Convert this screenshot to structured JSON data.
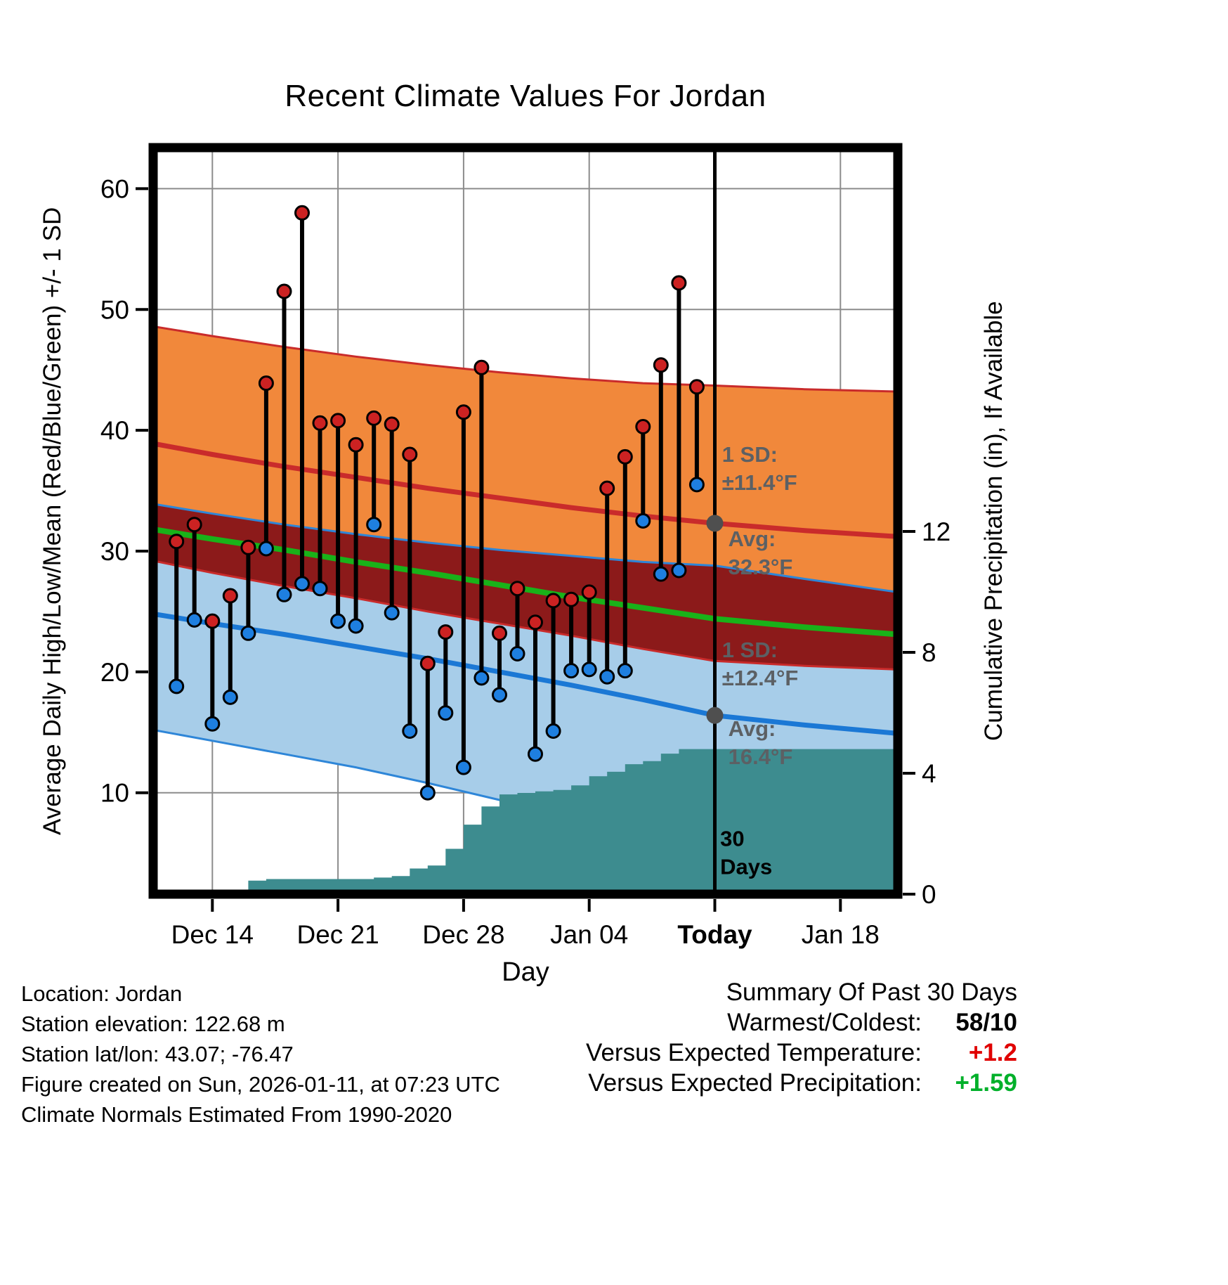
{
  "title": "Recent Climate Values For Jordan",
  "colors": {
    "orange_band": "#F1883B",
    "dark_red_band": "#8C1A1A",
    "red_line": "#C92B2B",
    "green_line": "#19B219",
    "blue_band": "#A7CDE9",
    "blue_line": "#1B78D5",
    "blue_edge": "#2E86D8",
    "teal": "#3D8C8F",
    "dot_high": "#CC2222",
    "dot_low": "#1E7FE0",
    "grid": "#8C8C8C",
    "gray_dot": "#4F4F4F",
    "ann_gray": "#5C6064"
  },
  "chart_data": {
    "type": "line",
    "title": "Recent Climate Values For Jordan",
    "x_axis": {
      "label": "Day",
      "range": [
        -0.3,
        41.2
      ],
      "ticks": [
        {
          "day": 3,
          "label": "Dec 14",
          "bold": false
        },
        {
          "day": 10,
          "label": "Dec 21",
          "bold": false
        },
        {
          "day": 17,
          "label": "Dec 28",
          "bold": false
        },
        {
          "day": 24,
          "label": "Jan 04",
          "bold": false
        },
        {
          "day": 31,
          "label": "Today",
          "bold": true
        },
        {
          "day": 38,
          "label": "Jan 18",
          "bold": false
        }
      ]
    },
    "y_temp_axis": {
      "label": "Average Daily High/Low/Mean (Red/Blue/Green) +/- 1 SD",
      "range": [
        1.6,
        63.4
      ],
      "ticks": [
        10,
        20,
        30,
        40,
        50,
        60
      ]
    },
    "y_precip_axis": {
      "label": "Cumulative Precipitation (in), If Available",
      "range": [
        0,
        24.7
      ],
      "ticks": [
        0,
        4,
        8,
        12
      ]
    },
    "today_day": 31,
    "daily": [
      {
        "day": 1,
        "high": 30.8,
        "low": 18.8
      },
      {
        "day": 2,
        "high": 32.2,
        "low": 24.3
      },
      {
        "day": 3,
        "high": 24.2,
        "low": 15.7
      },
      {
        "day": 4,
        "high": 26.3,
        "low": 17.9
      },
      {
        "day": 5,
        "high": 30.3,
        "low": 23.2
      },
      {
        "day": 6,
        "high": 43.9,
        "low": 30.2
      },
      {
        "day": 7,
        "high": 51.5,
        "low": 26.4
      },
      {
        "day": 8,
        "high": 58.0,
        "low": 27.3
      },
      {
        "day": 9,
        "high": 40.6,
        "low": 26.9
      },
      {
        "day": 10,
        "high": 40.8,
        "low": 24.2
      },
      {
        "day": 11,
        "high": 38.8,
        "low": 23.8
      },
      {
        "day": 12,
        "high": 41.0,
        "low": 32.2
      },
      {
        "day": 13,
        "high": 40.5,
        "low": 24.9
      },
      {
        "day": 14,
        "high": 38.0,
        "low": 15.1
      },
      {
        "day": 15,
        "high": 20.7,
        "low": 10.0
      },
      {
        "day": 16,
        "high": 23.3,
        "low": 16.6
      },
      {
        "day": 17,
        "high": 41.5,
        "low": 12.1
      },
      {
        "day": 18,
        "high": 45.2,
        "low": 19.5
      },
      {
        "day": 19,
        "high": 23.2,
        "low": 18.1
      },
      {
        "day": 20,
        "high": 26.9,
        "low": 21.5
      },
      {
        "day": 21,
        "high": 24.1,
        "low": 13.2
      },
      {
        "day": 22,
        "high": 25.9,
        "low": 15.1
      },
      {
        "day": 23,
        "high": 26.0,
        "low": 20.1
      },
      {
        "day": 24,
        "high": 26.6,
        "low": 20.2
      },
      {
        "day": 25,
        "high": 35.2,
        "low": 19.6
      },
      {
        "day": 26,
        "high": 37.8,
        "low": 20.1
      },
      {
        "day": 27,
        "high": 40.3,
        "low": 32.5
      },
      {
        "day": 28,
        "high": 45.4,
        "low": 28.1
      },
      {
        "day": 29,
        "high": 52.2,
        "low": 28.4
      },
      {
        "day": 30,
        "high": 43.6,
        "low": 35.5
      }
    ],
    "normals": {
      "days": [
        -0.3,
        3,
        7,
        11,
        15,
        19,
        23,
        27,
        31,
        36,
        41.2
      ],
      "high_upper": [
        48.6,
        47.8,
        46.9,
        46.1,
        45.4,
        44.8,
        44.3,
        43.9,
        43.7,
        43.4,
        43.2
      ],
      "high_avg": [
        38.9,
        38.0,
        37.0,
        36.1,
        35.2,
        34.4,
        33.6,
        32.9,
        32.3,
        31.7,
        31.2
      ],
      "high_lower": [
        29.2,
        28.2,
        27.1,
        26.1,
        25.0,
        24.0,
        23.0,
        21.9,
        20.9,
        20.5,
        20.2
      ],
      "mean_avg": [
        31.8,
        31.0,
        30.1,
        29.1,
        28.2,
        27.2,
        26.2,
        25.3,
        24.4,
        23.7,
        23.1
      ],
      "low_upper": [
        33.9,
        33.1,
        32.2,
        31.4,
        30.7,
        30.1,
        29.6,
        29.1,
        28.8,
        27.7,
        26.6
      ],
      "low_avg": [
        24.8,
        24.0,
        23.1,
        22.1,
        21.1,
        20.0,
        18.9,
        17.7,
        16.4,
        15.6,
        14.9
      ],
      "low_lower": [
        15.2,
        14.3,
        13.2,
        12.1,
        10.8,
        9.4,
        7.8,
        6.0,
        4.0,
        3.6,
        3.3
      ]
    },
    "precip": {
      "days": [
        0,
        1,
        2,
        3,
        4,
        5,
        6,
        7,
        8,
        9,
        10,
        11,
        12,
        13,
        14,
        15,
        16,
        17,
        18,
        19,
        20,
        21,
        22,
        23,
        24,
        25,
        26,
        27,
        28,
        29,
        30,
        31
      ],
      "values": [
        0,
        0,
        0.1,
        0.15,
        0.15,
        0.45,
        0.5,
        0.5,
        0.5,
        0.5,
        0.5,
        0.5,
        0.55,
        0.6,
        0.85,
        0.95,
        1.5,
        2.3,
        2.9,
        3.3,
        3.35,
        3.4,
        3.45,
        3.6,
        3.9,
        4.05,
        4.3,
        4.4,
        4.65,
        4.8,
        4.8,
        4.8
      ]
    },
    "annotations": [
      {
        "id": "high-sd",
        "lines": [
          "1 SD:",
          "±11.4°F"
        ],
        "day": 31.4,
        "temp": 37.4
      },
      {
        "id": "high-avg",
        "lines": [
          "Avg:",
          "32.3°F"
        ],
        "day": 31.75,
        "temp": 30.4,
        "dot_temp": 32.3
      },
      {
        "id": "low-sd",
        "lines": [
          "1 SD:",
          "±12.4°F"
        ],
        "day": 31.4,
        "temp": 21.2
      },
      {
        "id": "low-avg",
        "lines": [
          "Avg:",
          "16.4°F"
        ],
        "day": 31.75,
        "temp": 14.7,
        "dot_temp": 16.4
      },
      {
        "id": "period",
        "lines": [
          "30",
          "Days"
        ],
        "day": 31.3,
        "temp": 5.6,
        "black": true
      }
    ]
  },
  "footer": {
    "left": [
      "Location: Jordan",
      "Station elevation: 122.68 m",
      "Station lat/lon: 43.07; -76.47",
      "Figure created on Sun, 2026-01-11, at 07:23 UTC",
      "Climate Normals Estimated From 1990-2020"
    ],
    "summary": {
      "title": "Summary Of Past 30 Days",
      "rows": [
        {
          "label": "Warmest/Coldest:",
          "value": "58/10",
          "color": "#000000"
        },
        {
          "label": "Versus Expected Temperature:",
          "value": "+1.2",
          "color": "#E00000"
        },
        {
          "label": "Versus Expected Precipitation:",
          "value": "+1.59",
          "color": "#00B02A"
        }
      ]
    }
  }
}
